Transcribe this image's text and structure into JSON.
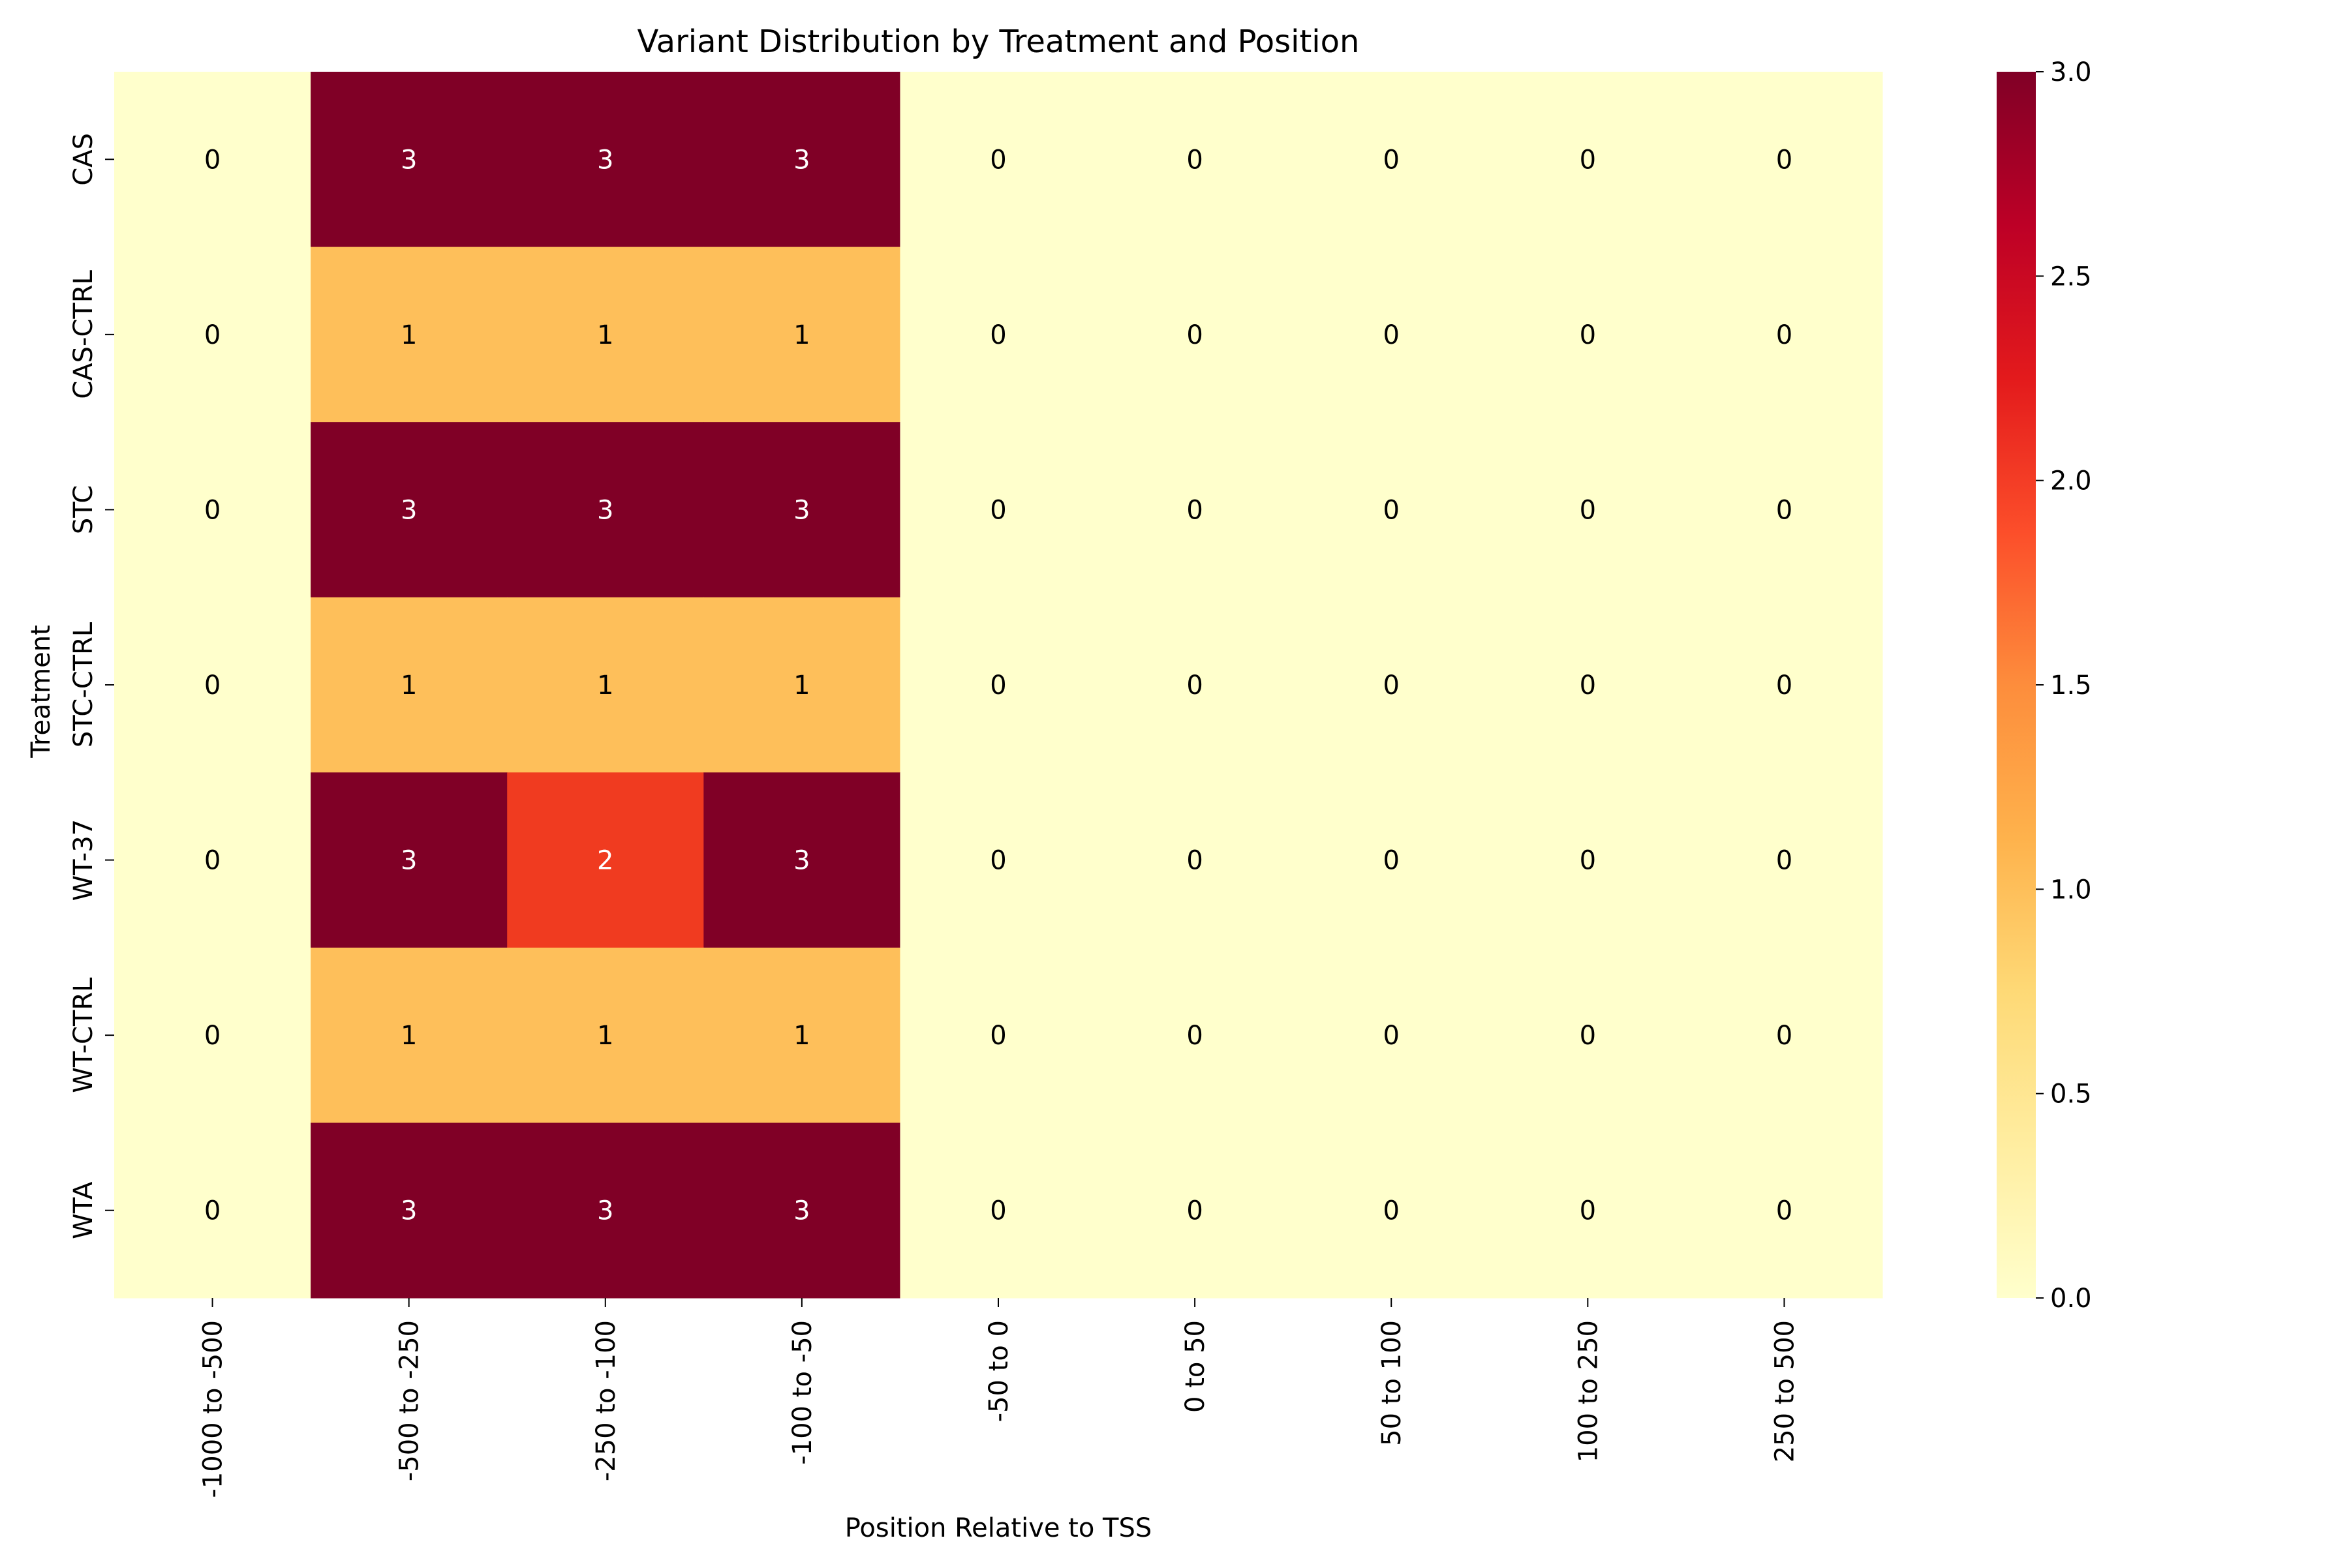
{
  "chart_data": {
    "type": "heatmap",
    "title": "Variant Distribution by Treatment and Position",
    "xlabel": "Position Relative to TSS",
    "ylabel": "Treatment",
    "x_categories": [
      "-1000 to -500",
      "-500 to -250",
      "-250 to -100",
      "-100 to -50",
      "-50 to 0",
      "0 to 50",
      "50 to 100",
      "100 to 250",
      "250 to 500"
    ],
    "y_categories": [
      "CAS",
      "CAS-CTRL",
      "STC",
      "STC-CTRL",
      "WT-37",
      "WT-CTRL",
      "WTA"
    ],
    "values": [
      [
        0,
        3,
        3,
        3,
        0,
        0,
        0,
        0,
        0
      ],
      [
        0,
        1,
        1,
        1,
        0,
        0,
        0,
        0,
        0
      ],
      [
        0,
        3,
        3,
        3,
        0,
        0,
        0,
        0,
        0
      ],
      [
        0,
        1,
        1,
        1,
        0,
        0,
        0,
        0,
        0
      ],
      [
        0,
        3,
        2,
        3,
        0,
        0,
        0,
        0,
        0
      ],
      [
        0,
        1,
        1,
        1,
        0,
        0,
        0,
        0,
        0
      ],
      [
        0,
        3,
        3,
        3,
        0,
        0,
        0,
        0,
        0
      ]
    ],
    "colorbar": {
      "min": 0,
      "max": 3,
      "ticks": [
        "0.0",
        "0.5",
        "1.0",
        "1.5",
        "2.0",
        "2.5",
        "3.0"
      ],
      "colormap": "YlOrRd"
    },
    "colors": {
      "0": "#ffffcc",
      "1": "#febf5a",
      "2": "#f03b20",
      "3": "#800026"
    }
  }
}
